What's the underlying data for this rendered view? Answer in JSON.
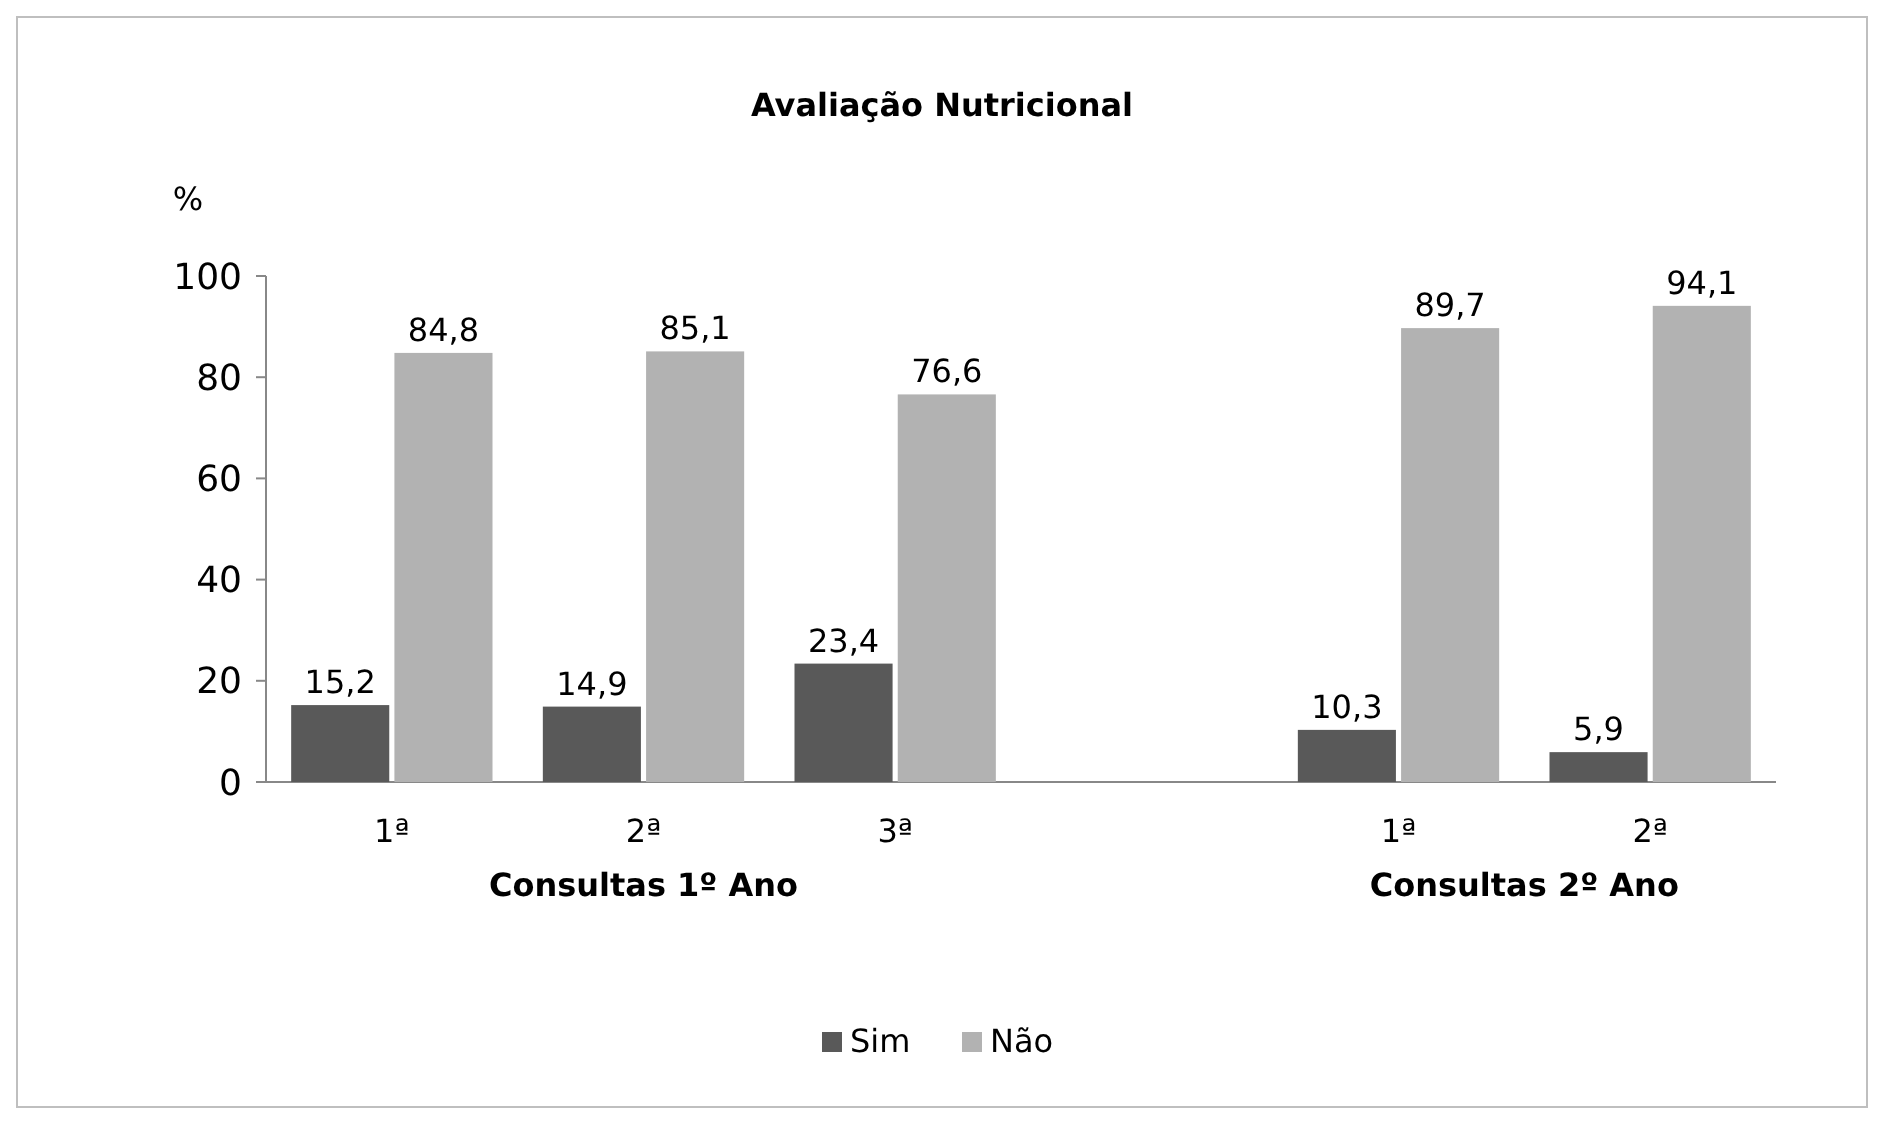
{
  "chart_data": {
    "type": "bar",
    "title": "Avaliação Nutricional",
    "ylabel": "%",
    "categories": [
      "1ª",
      "2ª",
      "3ª",
      null,
      "1ª",
      "2ª"
    ],
    "series": [
      {
        "name": "Sim",
        "color": "#595959",
        "values": [
          15.2,
          14.9,
          23.4,
          null,
          10.3,
          5.9
        ],
        "value_labels": [
          "15,2",
          "14,9",
          "23,4",
          null,
          "10,3",
          "5,9"
        ]
      },
      {
        "name": "Não",
        "color": "#b2b2b2",
        "values": [
          84.8,
          85.1,
          76.6,
          null,
          89.7,
          94.1
        ],
        "value_labels": [
          "84,8",
          "85,1",
          "76,6",
          null,
          "89,7",
          "94,1"
        ]
      }
    ],
    "annotations": [
      "Consultas 1º Ano",
      "Consultas 2º Ano"
    ],
    "ylim": [
      0,
      100
    ],
    "yticks": [
      0,
      20,
      40,
      60,
      80,
      100
    ],
    "legend": "bottom"
  }
}
